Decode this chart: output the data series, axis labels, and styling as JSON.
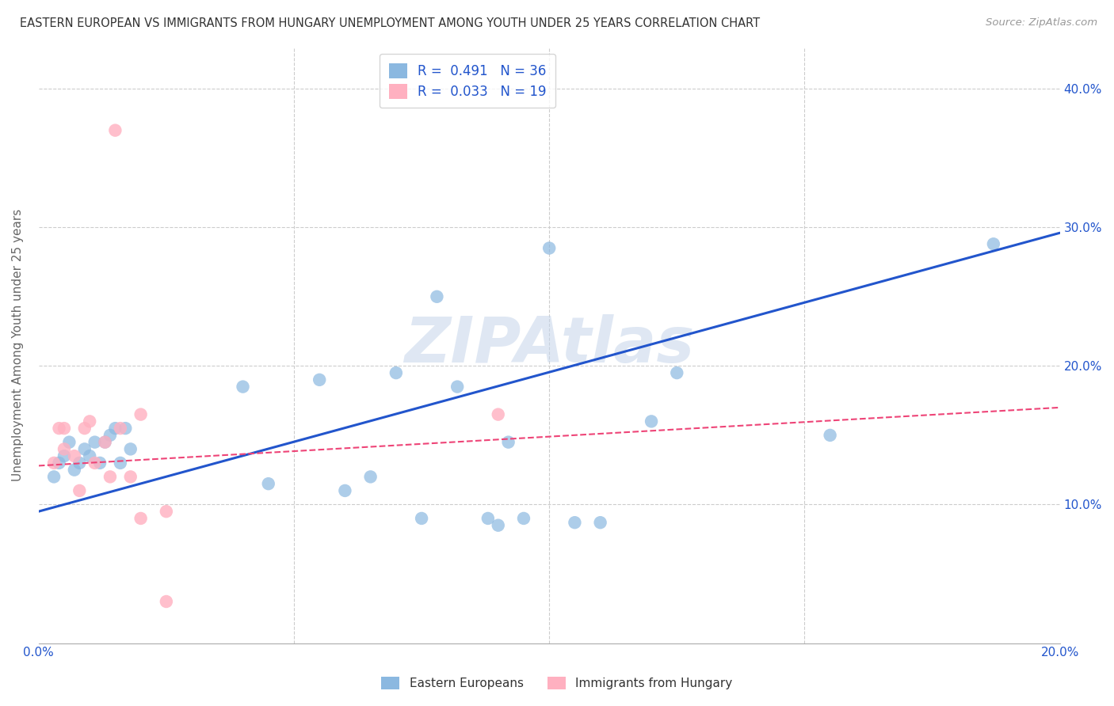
{
  "title": "EASTERN EUROPEAN VS IMMIGRANTS FROM HUNGARY UNEMPLOYMENT AMONG YOUTH UNDER 25 YEARS CORRELATION CHART",
  "source": "Source: ZipAtlas.com",
  "ylabel": "Unemployment Among Youth under 25 years",
  "xlim": [
    0.0,
    0.2
  ],
  "ylim": [
    0.0,
    0.43
  ],
  "yticks": [
    0.1,
    0.2,
    0.3,
    0.4
  ],
  "ytick_labels": [
    "10.0%",
    "20.0%",
    "30.0%",
    "40.0%"
  ],
  "xtick_positions": [
    0.0,
    0.05,
    0.1,
    0.15,
    0.2
  ],
  "xtick_labels": [
    "0.0%",
    "",
    "",
    "",
    "20.0%"
  ],
  "blue_R": 0.491,
  "blue_N": 36,
  "pink_R": 0.033,
  "pink_N": 19,
  "blue_color": "#8BB8E0",
  "pink_color": "#FFB0C0",
  "blue_line_color": "#2255CC",
  "pink_line_color": "#EE4477",
  "legend_label_blue": "Eastern Europeans",
  "legend_label_pink": "Immigrants from Hungary",
  "watermark": "ZIPAtlas",
  "blue_points_x": [
    0.003,
    0.004,
    0.005,
    0.006,
    0.007,
    0.008,
    0.009,
    0.01,
    0.011,
    0.012,
    0.013,
    0.014,
    0.015,
    0.016,
    0.017,
    0.018,
    0.04,
    0.045,
    0.055,
    0.06,
    0.065,
    0.07,
    0.075,
    0.078,
    0.082,
    0.088,
    0.09,
    0.092,
    0.095,
    0.1,
    0.105,
    0.11,
    0.12,
    0.125,
    0.155,
    0.187
  ],
  "blue_points_y": [
    0.12,
    0.13,
    0.135,
    0.145,
    0.125,
    0.13,
    0.14,
    0.135,
    0.145,
    0.13,
    0.145,
    0.15,
    0.155,
    0.13,
    0.155,
    0.14,
    0.185,
    0.115,
    0.19,
    0.11,
    0.12,
    0.195,
    0.09,
    0.25,
    0.185,
    0.09,
    0.085,
    0.145,
    0.09,
    0.285,
    0.087,
    0.087,
    0.16,
    0.195,
    0.15,
    0.288
  ],
  "pink_points_x": [
    0.003,
    0.004,
    0.005,
    0.005,
    0.007,
    0.008,
    0.009,
    0.01,
    0.011,
    0.013,
    0.014,
    0.016,
    0.018,
    0.02,
    0.025,
    0.015,
    0.02,
    0.025,
    0.09
  ],
  "pink_points_y": [
    0.13,
    0.155,
    0.14,
    0.155,
    0.135,
    0.11,
    0.155,
    0.16,
    0.13,
    0.145,
    0.12,
    0.155,
    0.12,
    0.09,
    0.03,
    0.37,
    0.165,
    0.095,
    0.165
  ]
}
